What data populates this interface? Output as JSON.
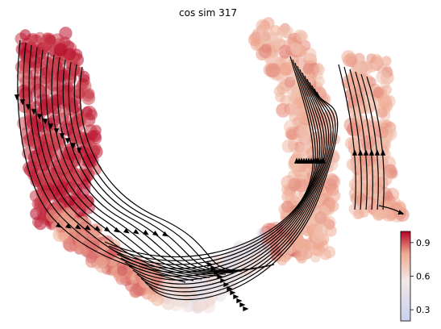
{
  "chart_data": {
    "type": "scatter",
    "title": "cos sim 317",
    "xlabel": "",
    "ylabel": "",
    "grid": false,
    "axes_visible": false,
    "overlay": "velocity streamlines with arrowheads (black)",
    "colorbar": {
      "location": "bottom-right",
      "colormap": "coolwarm",
      "range": [
        0.2,
        1.0
      ],
      "ticks": [
        0.3,
        0.6,
        0.9
      ],
      "tick_labels": [
        "0.3",
        "0.6",
        "0.9"
      ],
      "colors": {
        "low": "#c9d0ef",
        "mid": "#f5ebe6",
        "high": "#b40426"
      }
    },
    "point_groups": [
      {
        "region": "left arm",
        "cos_sim_range": [
          0.9,
          1.0
        ]
      },
      {
        "region": "bottom arc (left half)",
        "cos_sim_range": [
          0.75,
          0.9
        ]
      },
      {
        "region": "bottom arc (center)",
        "cos_sim_range": [
          0.35,
          0.7
        ]
      },
      {
        "region": "right arm",
        "cos_sim_range": [
          0.7,
          0.85
        ]
      }
    ]
  }
}
